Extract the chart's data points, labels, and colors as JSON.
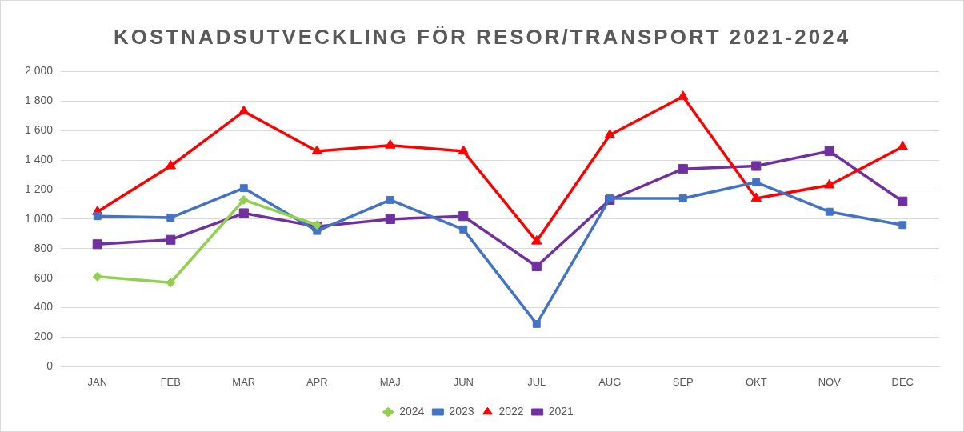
{
  "chart_data": {
    "type": "line",
    "title": "KOSTNADSUTVECKLING FÖR RESOR/TRANSPORT 2021-2024",
    "categories": [
      "JAN",
      "FEB",
      "MAR",
      "APR",
      "MAJ",
      "JUN",
      "JUL",
      "AUG",
      "SEP",
      "OKT",
      "NOV",
      "DEC"
    ],
    "series": [
      {
        "name": "2024",
        "color": "#92d050",
        "marker": "diamond",
        "values": [
          610,
          570,
          1130,
          960,
          null,
          null,
          null,
          null,
          null,
          null,
          null,
          null
        ]
      },
      {
        "name": "2023",
        "color": "#4472c4",
        "marker": "square",
        "values": [
          1020,
          1010,
          1210,
          920,
          1130,
          930,
          290,
          1140,
          1140,
          1250,
          1050,
          960
        ]
      },
      {
        "name": "2022",
        "color": "#ff0000",
        "marker": "triangle",
        "values": [
          1050,
          1360,
          1730,
          1460,
          1500,
          1460,
          850,
          1570,
          1830,
          1140,
          1230,
          1490
        ]
      },
      {
        "name": "2021",
        "color": "#7030a0",
        "marker": "square",
        "values": [
          830,
          860,
          1040,
          950,
          1000,
          1020,
          680,
          1130,
          1340,
          1360,
          1460,
          1120
        ]
      }
    ],
    "ylim": [
      0,
      2000
    ],
    "yticks": [
      0,
      200,
      400,
      600,
      800,
      {
        "value": 1000,
        "label": "1 000"
      },
      {
        "value": 1200,
        "label": "1 200"
      },
      {
        "value": 1400,
        "label": "1 400"
      },
      {
        "value": 1600,
        "label": "1 600"
      },
      {
        "value": 1800,
        "label": "1 800"
      },
      {
        "value": 2000,
        "label": "2 000"
      }
    ],
    "grid": "y",
    "legend": "bottom",
    "line_style": "solid"
  }
}
